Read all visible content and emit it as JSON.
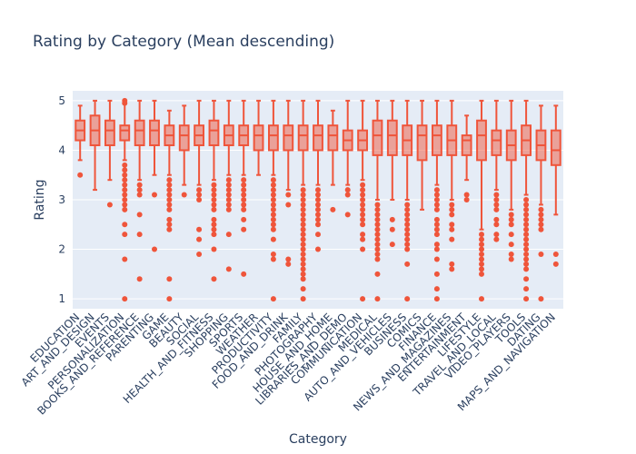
{
  "chart_data": {
    "type": "box",
    "title": "Rating by Category (Mean descending)",
    "xlabel": "Category",
    "ylabel": "Rating",
    "ylim": [
      0.8,
      5.2
    ],
    "yticks": [
      1,
      2,
      3,
      4,
      5
    ],
    "colors": {
      "series": "#ef553b",
      "plot_bg": "#e5ecf6",
      "text": "#2a3f5f"
    },
    "categories": [
      "EDUCATION",
      "ART_AND_DESIGN",
      "EVENTS",
      "PERSONALIZATION",
      "BOOKS_AND_REFERENCE",
      "PARENTING",
      "GAME",
      "BEAUTY",
      "SOCIAL",
      "HEALTH_AND_FITNESS",
      "SHOPPING",
      "SPORTS",
      "WEATHER",
      "PRODUCTIVITY",
      "FOOD_AND_DRINK",
      "FAMILY",
      "PHOTOGRAPHY",
      "HOUSE_AND_HOME",
      "LIBRARIES_AND_DEMO",
      "COMMUNICATION",
      "MEDICAL",
      "AUTO_AND_VEHICLES",
      "BUSINESS",
      "COMICS",
      "FINANCE",
      "NEWS_AND_MAGAZINES",
      "ENTERTAINMENT",
      "LIFESTYLE",
      "TRAVEL_AND_LOCAL",
      "VIDEO_PLAYERS",
      "TOOLS",
      "DATING",
      "MAPS_AND_NAVIGATION"
    ],
    "boxes": [
      {
        "min": 3.8,
        "q1": 4.2,
        "median": 4.4,
        "q3": 4.6,
        "max": 4.9,
        "outliers": [
          3.5
        ]
      },
      {
        "min": 3.2,
        "q1": 4.1,
        "median": 4.4,
        "q3": 4.7,
        "max": 5.0,
        "outliers": []
      },
      {
        "min": 3.4,
        "q1": 4.1,
        "median": 4.4,
        "q3": 4.6,
        "max": 5.0,
        "outliers": [
          2.9
        ]
      },
      {
        "min": 3.8,
        "q1": 4.2,
        "median": 4.4,
        "q3": 4.5,
        "max": 5.0,
        "outliers": [
          3.7,
          3.6,
          3.5,
          3.4,
          3.3,
          3.2,
          3.1,
          3.0,
          2.9,
          2.8,
          2.5,
          2.3,
          1.8,
          1.0,
          5.0,
          4.95
        ]
      },
      {
        "min": 3.4,
        "q1": 4.1,
        "median": 4.4,
        "q3": 4.6,
        "max": 5.0,
        "outliers": [
          3.3,
          3.2,
          3.1,
          2.7,
          2.3,
          1.4
        ]
      },
      {
        "min": 3.5,
        "q1": 4.1,
        "median": 4.4,
        "q3": 4.6,
        "max": 5.0,
        "outliers": [
          3.1,
          2.0
        ]
      },
      {
        "min": 3.5,
        "q1": 4.1,
        "median": 4.3,
        "q3": 4.5,
        "max": 4.8,
        "outliers": [
          3.4,
          3.3,
          3.2,
          3.1,
          3.0,
          2.9,
          2.8,
          2.6,
          2.5,
          2.4,
          1.4,
          1.0
        ]
      },
      {
        "min": 3.3,
        "q1": 4.0,
        "median": 4.3,
        "q3": 4.5,
        "max": 4.9,
        "outliers": [
          3.1
        ]
      },
      {
        "min": 3.3,
        "q1": 4.1,
        "median": 4.3,
        "q3": 4.5,
        "max": 5.0,
        "outliers": [
          3.2,
          3.1,
          3.0,
          2.4,
          2.2,
          1.9
        ]
      },
      {
        "min": 3.4,
        "q1": 4.1,
        "median": 4.4,
        "q3": 4.6,
        "max": 5.0,
        "outliers": [
          3.3,
          3.2,
          3.1,
          3.0,
          2.9,
          2.8,
          2.6,
          2.5,
          2.4,
          2.3,
          2.0,
          1.4
        ]
      },
      {
        "min": 3.5,
        "q1": 4.1,
        "median": 4.3,
        "q3": 4.5,
        "max": 5.0,
        "outliers": [
          3.4,
          3.3,
          3.2,
          3.1,
          3.0,
          2.9,
          2.8,
          2.3,
          1.6
        ]
      },
      {
        "min": 3.5,
        "q1": 4.1,
        "median": 4.3,
        "q3": 4.5,
        "max": 5.0,
        "outliers": [
          3.4,
          3.3,
          3.2,
          3.1,
          3.0,
          2.9,
          2.8,
          2.6,
          2.4,
          1.5
        ]
      },
      {
        "min": 3.5,
        "q1": 4.0,
        "median": 4.3,
        "q3": 4.5,
        "max": 5.0,
        "outliers": []
      },
      {
        "min": 3.5,
        "q1": 4.0,
        "median": 4.3,
        "q3": 4.5,
        "max": 5.0,
        "outliers": [
          3.4,
          3.3,
          3.2,
          3.1,
          3.0,
          2.9,
          2.8,
          2.7,
          2.6,
          2.5,
          2.4,
          2.2,
          1.9,
          1.8,
          1.0
        ]
      },
      {
        "min": 3.2,
        "q1": 4.0,
        "median": 4.3,
        "q3": 4.5,
        "max": 5.0,
        "outliers": [
          3.1,
          2.9,
          1.8,
          1.7
        ]
      },
      {
        "min": 3.3,
        "q1": 4.0,
        "median": 4.3,
        "q3": 4.5,
        "max": 5.0,
        "outliers": [
          3.2,
          3.1,
          3.0,
          2.9,
          2.8,
          2.7,
          2.6,
          2.5,
          2.4,
          2.3,
          2.2,
          2.1,
          2.0,
          1.9,
          1.8,
          1.7,
          1.6,
          1.5,
          1.4,
          1.2,
          1.0
        ]
      },
      {
        "min": 3.3,
        "q1": 4.0,
        "median": 4.3,
        "q3": 4.5,
        "max": 5.0,
        "outliers": [
          3.2,
          3.1,
          3.0,
          2.9,
          2.8,
          2.7,
          2.6,
          2.5,
          2.3,
          2.0
        ]
      },
      {
        "min": 3.3,
        "q1": 4.0,
        "median": 4.3,
        "q3": 4.5,
        "max": 4.8,
        "outliers": [
          2.8
        ]
      },
      {
        "min": 3.3,
        "q1": 4.0,
        "median": 4.2,
        "q3": 4.4,
        "max": 5.0,
        "outliers": [
          3.2,
          3.1,
          2.7
        ]
      },
      {
        "min": 3.4,
        "q1": 4.0,
        "median": 4.2,
        "q3": 4.4,
        "max": 5.0,
        "outliers": [
          3.3,
          3.2,
          3.1,
          3.0,
          2.9,
          2.8,
          2.7,
          2.6,
          2.5,
          2.3,
          2.2,
          2.0,
          1.0
        ]
      },
      {
        "min": 3.0,
        "q1": 3.9,
        "median": 4.3,
        "q3": 4.6,
        "max": 5.0,
        "outliers": [
          2.9,
          2.8,
          2.7,
          2.6,
          2.5,
          2.4,
          2.3,
          2.2,
          2.1,
          2.0,
          1.9,
          1.8,
          1.5,
          1.0
        ]
      },
      {
        "min": 3.0,
        "q1": 3.9,
        "median": 4.3,
        "q3": 4.6,
        "max": 5.0,
        "outliers": [
          2.6,
          2.4,
          2.1
        ]
      },
      {
        "min": 3.0,
        "q1": 3.9,
        "median": 4.2,
        "q3": 4.5,
        "max": 5.0,
        "outliers": [
          2.9,
          2.8,
          2.7,
          2.6,
          2.5,
          2.4,
          2.3,
          2.2,
          2.1,
          2.0,
          1.7,
          1.0
        ]
      },
      {
        "min": 2.8,
        "q1": 3.8,
        "median": 4.3,
        "q3": 4.5,
        "max": 5.0,
        "outliers": []
      },
      {
        "min": 3.3,
        "q1": 3.9,
        "median": 4.3,
        "q3": 4.5,
        "max": 5.0,
        "outliers": [
          3.2,
          3.1,
          3.0,
          2.9,
          2.8,
          2.6,
          2.5,
          2.4,
          2.3,
          2.1,
          2.0,
          1.8,
          1.5,
          1.2,
          1.0
        ]
      },
      {
        "min": 3.0,
        "q1": 3.9,
        "median": 4.2,
        "q3": 4.5,
        "max": 5.0,
        "outliers": [
          2.9,
          2.8,
          2.7,
          2.5,
          2.4,
          2.2,
          1.7,
          1.6
        ]
      },
      {
        "min": 3.4,
        "q1": 3.9,
        "median": 4.2,
        "q3": 4.3,
        "max": 4.7,
        "outliers": [
          3.1,
          3.0
        ]
      },
      {
        "min": 2.4,
        "q1": 3.8,
        "median": 4.3,
        "q3": 4.6,
        "max": 5.0,
        "outliers": [
          2.3,
          2.2,
          2.1,
          2.0,
          1.9,
          1.8,
          1.7,
          1.6,
          1.5,
          1.0
        ]
      },
      {
        "min": 3.2,
        "q1": 3.9,
        "median": 4.2,
        "q3": 4.4,
        "max": 5.0,
        "outliers": [
          3.1,
          3.0,
          2.9,
          2.8,
          2.6,
          2.5,
          2.3,
          2.2
        ]
      },
      {
        "min": 2.8,
        "q1": 3.8,
        "median": 4.1,
        "q3": 4.4,
        "max": 5.0,
        "outliers": [
          2.7,
          2.6,
          2.5,
          2.3,
          2.1,
          1.9,
          1.8
        ]
      },
      {
        "min": 3.1,
        "q1": 3.9,
        "median": 4.2,
        "q3": 4.5,
        "max": 5.0,
        "outliers": [
          3.0,
          2.9,
          2.8,
          2.7,
          2.6,
          2.5,
          2.4,
          2.3,
          2.2,
          2.1,
          2.0,
          1.9,
          1.8,
          1.7,
          1.6,
          1.4,
          1.2,
          1.0
        ]
      },
      {
        "min": 2.9,
        "q1": 3.8,
        "median": 4.1,
        "q3": 4.4,
        "max": 4.9,
        "outliers": [
          2.8,
          2.7,
          2.6,
          2.5,
          2.4,
          1.9,
          1.0
        ]
      },
      {
        "min": 2.7,
        "q1": 3.7,
        "median": 4.0,
        "q3": 4.4,
        "max": 4.9,
        "outliers": [
          1.9,
          1.7
        ]
      }
    ]
  }
}
